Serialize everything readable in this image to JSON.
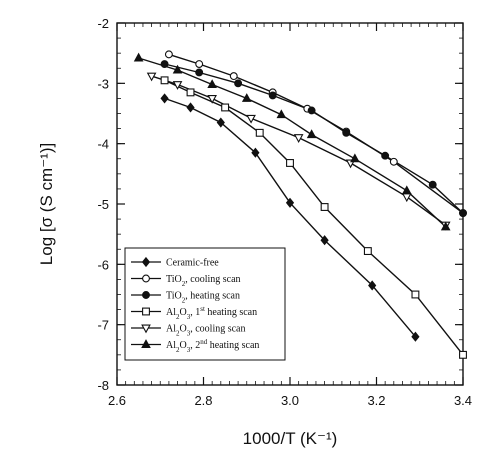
{
  "chart_data": {
    "type": "line",
    "xlabel": "1000/T  (K⁻¹)",
    "ylabel": "Log [σ (S cm⁻¹)]",
    "xlim": [
      2.6,
      3.4
    ],
    "ylim": [
      -8,
      -2
    ],
    "x_ticks": [
      "2.6",
      "2.8",
      "3.0",
      "3.2",
      "3.4"
    ],
    "y_ticks": [
      "-2",
      "-3",
      "-4",
      "-5",
      "-6",
      "-7",
      "-8"
    ],
    "grid": false,
    "legend_position": "bottom-left",
    "series": [
      {
        "name": "Ceramic-free",
        "marker": "filled-diamond",
        "color": "#111111",
        "points": [
          [
            2.71,
            -3.25
          ],
          [
            2.77,
            -3.4
          ],
          [
            2.84,
            -3.65
          ],
          [
            2.92,
            -4.15
          ],
          [
            3.0,
            -4.98
          ],
          [
            3.08,
            -5.6
          ],
          [
            3.19,
            -6.35
          ],
          [
            3.29,
            -7.2
          ]
        ]
      },
      {
        "name": "TiO2, cooling scan",
        "marker": "open-circle",
        "color": "#111111",
        "points": [
          [
            2.72,
            -2.52
          ],
          [
            2.79,
            -2.68
          ],
          [
            2.87,
            -2.88
          ],
          [
            2.96,
            -3.15
          ],
          [
            3.04,
            -3.42
          ],
          [
            3.13,
            -3.8
          ],
          [
            3.24,
            -4.3
          ],
          [
            3.4,
            -5.15
          ]
        ]
      },
      {
        "name": "TiO2, heating scan",
        "marker": "filled-circle",
        "color": "#111111",
        "points": [
          [
            2.71,
            -2.68
          ],
          [
            2.79,
            -2.82
          ],
          [
            2.88,
            -3.0
          ],
          [
            2.96,
            -3.2
          ],
          [
            3.05,
            -3.45
          ],
          [
            3.13,
            -3.82
          ],
          [
            3.22,
            -4.2
          ],
          [
            3.33,
            -4.68
          ],
          [
            3.4,
            -5.15
          ]
        ]
      },
      {
        "name": "Al2O3, 1st heating scan",
        "marker": "open-square",
        "color": "#111111",
        "points": [
          [
            2.71,
            -2.95
          ],
          [
            2.77,
            -3.15
          ],
          [
            2.85,
            -3.4
          ],
          [
            2.93,
            -3.82
          ],
          [
            3.0,
            -4.32
          ],
          [
            3.08,
            -5.05
          ],
          [
            3.18,
            -5.78
          ],
          [
            3.29,
            -6.5
          ],
          [
            3.4,
            -7.5
          ]
        ]
      },
      {
        "name": "Al2O3, cooling scan",
        "marker": "open-triangle-down",
        "color": "#111111",
        "points": [
          [
            2.68,
            -2.88
          ],
          [
            2.74,
            -3.02
          ],
          [
            2.82,
            -3.25
          ],
          [
            2.91,
            -3.58
          ],
          [
            3.02,
            -3.9
          ],
          [
            3.14,
            -4.32
          ],
          [
            3.27,
            -4.88
          ],
          [
            3.36,
            -5.35
          ]
        ]
      },
      {
        "name": "Al2O3, 2nd heating scan",
        "marker": "filled-triangle-up",
        "color": "#111111",
        "points": [
          [
            2.65,
            -2.58
          ],
          [
            2.74,
            -2.78
          ],
          [
            2.82,
            -3.02
          ],
          [
            2.9,
            -3.25
          ],
          [
            2.98,
            -3.52
          ],
          [
            3.05,
            -3.85
          ],
          [
            3.15,
            -4.25
          ],
          [
            3.27,
            -4.78
          ],
          [
            3.36,
            -5.38
          ]
        ]
      }
    ]
  },
  "legend": {
    "entries": [
      {
        "base": "Ceramic-free",
        "sub": "",
        "mid": "",
        "sup": "",
        "tail": ""
      },
      {
        "base": "TiO",
        "sub": "2",
        "mid": ", cooling scan",
        "sup": "",
        "tail": ""
      },
      {
        "base": "TiO",
        "sub": "2",
        "mid": ", heating scan",
        "sup": "",
        "tail": ""
      },
      {
        "base": "Al",
        "sub": "2",
        "mid": "O",
        "sub2": "3",
        "mid2": ", 1",
        "sup": "st",
        "tail": " heating scan"
      },
      {
        "base": "Al",
        "sub": "2",
        "mid": "O",
        "sub2": "3",
        "mid2": ", cooling scan",
        "sup": "",
        "tail": ""
      },
      {
        "base": "Al",
        "sub": "2",
        "mid": "O",
        "sub2": "3",
        "mid2": ", 2",
        "sup": "nd",
        "tail": " heating scan"
      }
    ]
  }
}
